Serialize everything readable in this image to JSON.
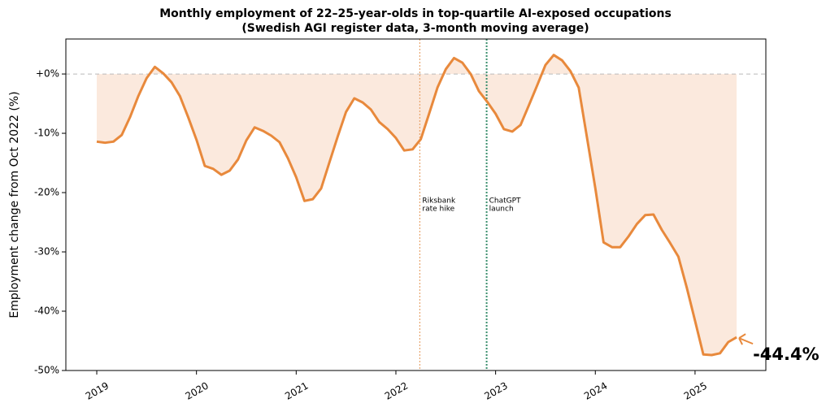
{
  "chart_data": {
    "type": "area_line",
    "title": [
      "Monthly employment of 22–25-year-olds in top-quartile AI-exposed occupations",
      "(Swedish AGI register data, 3-month moving average)"
    ],
    "ylabel": "Employment change from Oct 2022 (%)",
    "color": "#e8893c",
    "fill_color": "#fbe9dd",
    "x": [
      2019.0,
      2019.083,
      2019.167,
      2019.25,
      2019.333,
      2019.417,
      2019.5,
      2019.583,
      2019.667,
      2019.75,
      2019.833,
      2019.917,
      2020.0,
      2020.083,
      2020.167,
      2020.25,
      2020.333,
      2020.417,
      2020.5,
      2020.583,
      2020.667,
      2020.75,
      2020.833,
      2020.917,
      2021.0,
      2021.083,
      2021.167,
      2021.25,
      2021.333,
      2021.417,
      2021.5,
      2021.583,
      2021.667,
      2021.75,
      2021.833,
      2021.917,
      2022.0,
      2022.083,
      2022.167,
      2022.25,
      2022.333,
      2022.417,
      2022.5,
      2022.583,
      2022.667,
      2022.75,
      2022.833,
      2022.917,
      2023.0,
      2023.083,
      2023.167,
      2023.25,
      2023.333,
      2023.417,
      2023.5,
      2023.583,
      2023.667,
      2023.75,
      2023.833,
      2023.917,
      2024.0,
      2024.083,
      2024.167,
      2024.25,
      2024.333,
      2024.417,
      2024.5,
      2024.583,
      2024.667,
      2024.75,
      2024.833,
      2024.917,
      2025.0,
      2025.083,
      2025.167,
      2025.25,
      2025.333,
      2025.417
    ],
    "values": [
      -11.4,
      -11.6,
      -11.4,
      -10.3,
      -7.3,
      -3.7,
      -0.7,
      1.2,
      0.1,
      -1.4,
      -3.7,
      -7.3,
      -11.1,
      -15.5,
      -16.0,
      -17.0,
      -16.3,
      -14.4,
      -11.2,
      -9.0,
      -9.6,
      -10.4,
      -11.5,
      -14.2,
      -17.4,
      -21.4,
      -21.1,
      -19.3,
      -14.9,
      -10.5,
      -6.4,
      -4.1,
      -4.8,
      -6.0,
      -8.1,
      -9.3,
      -10.8,
      -12.9,
      -12.7,
      -11.0,
      -6.7,
      -2.3,
      0.8,
      2.7,
      1.9,
      0.0,
      -2.9,
      -4.7,
      -6.7,
      -9.3,
      -9.7,
      -8.6,
      -5.3,
      -1.9,
      1.5,
      3.2,
      2.3,
      0.5,
      -2.3,
      -10.8,
      -19.3,
      -28.4,
      -29.2,
      -29.2,
      -27.4,
      -25.3,
      -23.8,
      -23.7,
      -26.3,
      -28.5,
      -30.8,
      -36.0,
      -41.6,
      -47.3,
      -47.4,
      -47.1,
      -45.2,
      -44.4
    ],
    "xlim": [
      2018.69,
      2025.71
    ],
    "xticks": [
      2019,
      2020,
      2021,
      2022,
      2023,
      2024,
      2025
    ],
    "ylim": [
      -50,
      5.9
    ],
    "yticks": [
      {
        "value": -50,
        "label": "-50%"
      },
      {
        "value": -40,
        "label": "-40%"
      },
      {
        "value": -30,
        "label": "-30%"
      },
      {
        "value": -20,
        "label": "-20%"
      },
      {
        "value": -10,
        "label": "-10%"
      },
      {
        "value": 0,
        "label": "+0%"
      }
    ],
    "reference_line": 0,
    "events": [
      {
        "x": 2022.24,
        "color": "#e8a46c",
        "text": [
          "Riksbank",
          "rate hike"
        ]
      },
      {
        "x": 2022.91,
        "color": "#3b8f6e",
        "text": [
          "ChatGPT",
          "launch"
        ]
      }
    ],
    "end_label": "-44.4%"
  }
}
